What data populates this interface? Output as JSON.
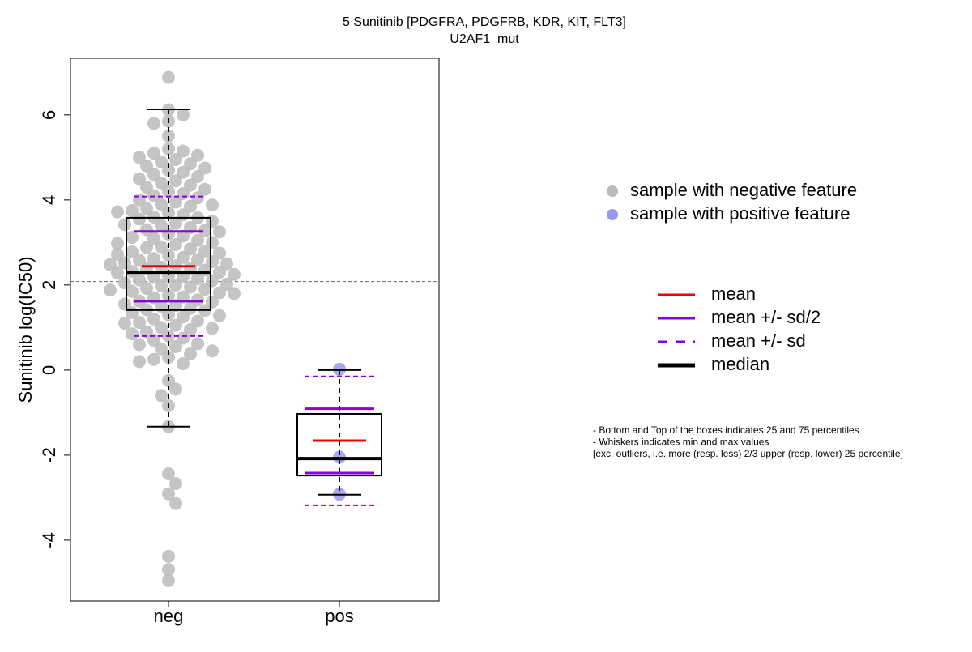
{
  "chart_data": {
    "type": "box",
    "title": "5 Sunitinib [PDGFRA, PDGFRB, KDR, KIT, FLT3]",
    "subtitle": "U2AF1_mut",
    "y_label": "Sunitinib log(IC50)",
    "categories": [
      "neg",
      "pos"
    ],
    "ylim": [
      -5.43,
      7.33
    ],
    "yticks": [
      -4,
      -2,
      0,
      2,
      4,
      6
    ],
    "reference_line": 2.08,
    "groups": [
      {
        "name": "sample with negative feature",
        "color": "#bbbbbb",
        "points": [
          6.88,
          6.12,
          6.0,
          5.85,
          5.8,
          5.5,
          5.2,
          5.15,
          5.1,
          5.05,
          5.0,
          4.95,
          4.9,
          4.85,
          4.8,
          4.75,
          4.7,
          4.65,
          4.6,
          4.55,
          4.5,
          4.45,
          4.4,
          4.35,
          4.3,
          4.25,
          4.2,
          4.15,
          4.1,
          4.05,
          4.0,
          3.95,
          3.9,
          3.88,
          3.85,
          3.8,
          3.75,
          3.72,
          3.7,
          3.65,
          3.6,
          3.58,
          3.55,
          3.5,
          3.45,
          3.42,
          3.4,
          3.35,
          3.3,
          3.28,
          3.25,
          3.2,
          3.15,
          3.12,
          3.1,
          3.05,
          3.0,
          2.98,
          2.95,
          2.9,
          2.88,
          2.85,
          2.8,
          2.78,
          2.75,
          2.72,
          2.7,
          2.65,
          2.62,
          2.6,
          2.58,
          2.55,
          2.52,
          2.5,
          2.48,
          2.45,
          2.42,
          2.4,
          2.38,
          2.35,
          2.32,
          2.3,
          2.28,
          2.25,
          2.22,
          2.2,
          2.18,
          2.15,
          2.12,
          2.1,
          2.05,
          2.02,
          2.0,
          1.98,
          1.95,
          1.92,
          1.9,
          1.88,
          1.85,
          1.82,
          1.8,
          1.75,
          1.72,
          1.7,
          1.65,
          1.62,
          1.6,
          1.55,
          1.52,
          1.5,
          1.45,
          1.42,
          1.4,
          1.35,
          1.3,
          1.28,
          1.25,
          1.2,
          1.15,
          1.12,
          1.1,
          1.05,
          1.0,
          0.98,
          0.95,
          0.9,
          0.85,
          0.8,
          0.75,
          0.7,
          0.62,
          0.6,
          0.55,
          0.5,
          0.45,
          0.38,
          0.3,
          0.25,
          0.2,
          0.15,
          -0.25,
          -0.45,
          -0.6,
          -0.84,
          -1.33,
          -2.44,
          -2.67,
          -2.91,
          -3.14,
          -4.38,
          -4.69,
          -4.95
        ],
        "whisker_low": -1.33,
        "q1": 1.41,
        "median": 2.3,
        "q3": 3.58,
        "whisker_high": 6.13,
        "mean": 2.44,
        "mean_minus_half_sd": 1.62,
        "mean_plus_half_sd": 3.26,
        "mean_minus_sd": 0.8,
        "mean_plus_sd": 4.08
      },
      {
        "name": "sample with positive feature",
        "color": "#9999ee",
        "points": [
          0.02,
          -2.05,
          -2.92
        ],
        "whisker_low": -2.93,
        "q1": -2.48,
        "median": -2.08,
        "q3": -1.03,
        "whisker_high": 0.0,
        "mean": -1.66,
        "mean_minus_half_sd": -2.42,
        "mean_plus_half_sd": -0.91,
        "mean_minus_sd": -3.18,
        "mean_plus_sd": -0.15
      }
    ],
    "line_legend": [
      {
        "name": "mean",
        "color": "#ee0000",
        "dashed": false
      },
      {
        "name": "mean +/- sd/2",
        "color": "#8800dd",
        "dashed": false
      },
      {
        "name": "mean +/- sd",
        "color": "#8800dd",
        "dashed": true
      },
      {
        "name": "median",
        "color": "#000000",
        "dashed": false
      }
    ],
    "notes": [
      "- Bottom and Top of the boxes indicates 25 and 75 percentiles",
      "- Whiskers indicates min and max values",
      "[exc. outliers, i.e. more (resp. less) 2/3 upper (resp. lower) 25 percentile]"
    ]
  }
}
